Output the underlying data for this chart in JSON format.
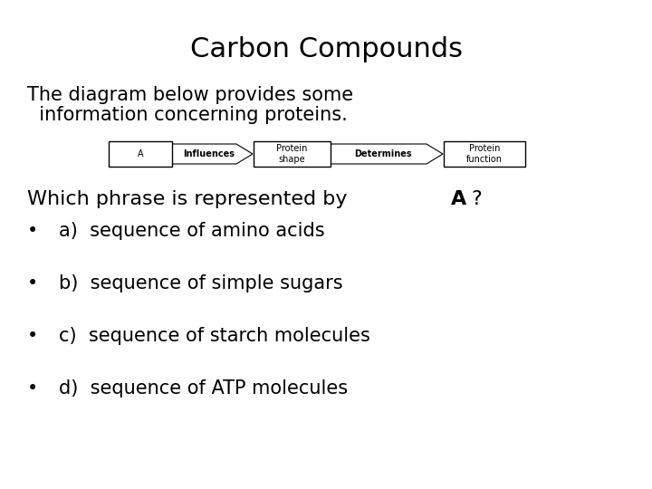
{
  "title": "Carbon Compounds",
  "subtitle_line1": "The diagram below provides some",
  "subtitle_line2": "  information concerning proteins.",
  "diagram_boxes": [
    "A",
    "Protein\nshape",
    "Protein\nfunction"
  ],
  "diagram_arrows": [
    "Influences",
    "Determines"
  ],
  "question_normal": "Which phrase is represented by ",
  "question_bold": "A",
  "question_end": "?",
  "options": [
    "a)  sequence of amino acids",
    "b)  sequence of simple sugars",
    "c)  sequence of starch molecules",
    "d)  sequence of ATP molecules"
  ],
  "title_fontsize": 22,
  "subtitle_fontsize": 15,
  "question_fontsize": 16,
  "option_fontsize": 15,
  "diagram_fontsize": 7,
  "bg_color": "#ffffff",
  "text_color": "#000000",
  "box_color": "#ffffff",
  "box_edge_color": "#000000"
}
